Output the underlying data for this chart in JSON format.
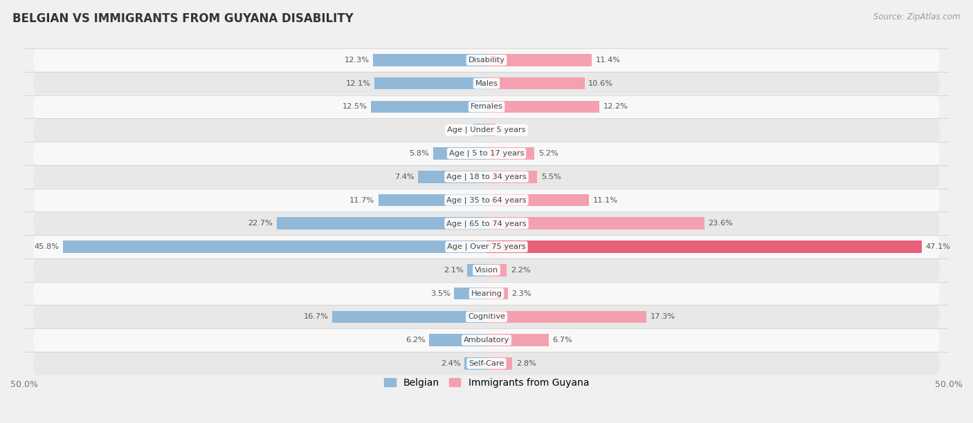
{
  "title": "BELGIAN VS IMMIGRANTS FROM GUYANA DISABILITY",
  "source": "Source: ZipAtlas.com",
  "categories": [
    "Disability",
    "Males",
    "Females",
    "Age | Under 5 years",
    "Age | 5 to 17 years",
    "Age | 18 to 34 years",
    "Age | 35 to 64 years",
    "Age | 65 to 74 years",
    "Age | Over 75 years",
    "Vision",
    "Hearing",
    "Cognitive",
    "Ambulatory",
    "Self-Care"
  ],
  "belgian_values": [
    12.3,
    12.1,
    12.5,
    1.4,
    5.8,
    7.4,
    11.7,
    22.7,
    45.8,
    2.1,
    3.5,
    16.7,
    6.2,
    2.4
  ],
  "guyana_values": [
    11.4,
    10.6,
    12.2,
    1.0,
    5.2,
    5.5,
    11.1,
    23.6,
    47.1,
    2.2,
    2.3,
    17.3,
    6.7,
    2.8
  ],
  "belgian_color": "#92b8d8",
  "guyana_color": "#f4a0b0",
  "guyana_color_dark": "#e8607a",
  "max_val": 50.0,
  "bg_color": "#f0f0f0",
  "row_color_light": "#f8f8f8",
  "row_color_dark": "#e8e8e8",
  "bar_height": 0.52,
  "label_fontsize": 8.2,
  "value_fontsize": 8.2,
  "title_fontsize": 12,
  "legend_label_belgian": "Belgian",
  "legend_label_guyana": "Immigrants from Guyana"
}
